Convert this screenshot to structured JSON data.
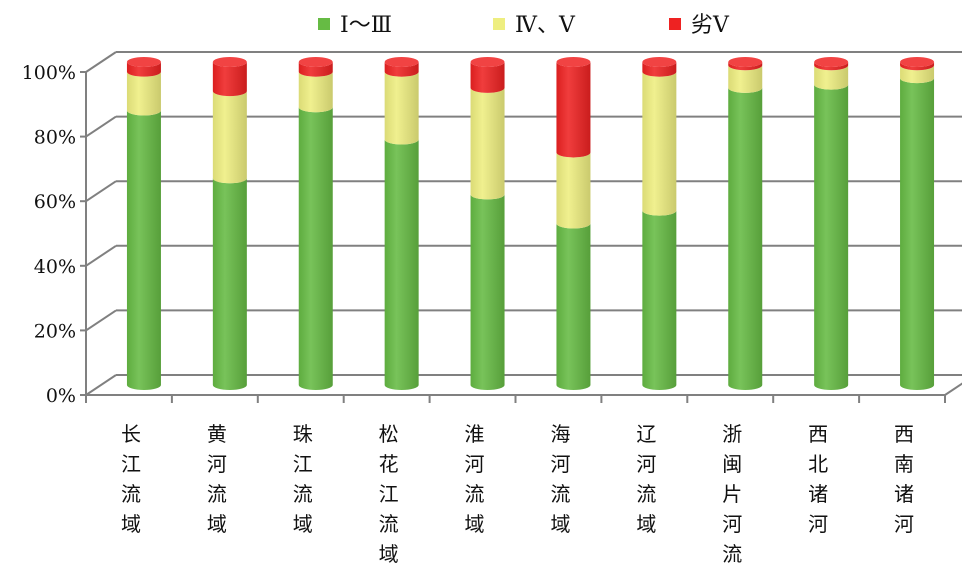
{
  "chart_data": {
    "type": "bar",
    "stacked": true,
    "orientation": "vertical",
    "three_d": true,
    "categories": [
      "长江流域",
      "黄河流域",
      "珠江流域",
      "松花江流域",
      "淮河流域",
      "海河流域",
      "辽河流域",
      "浙闽片河流",
      "西北诸河",
      "西南诸河"
    ],
    "series": [
      {
        "name": "Ⅰ～Ⅲ",
        "color": "#66bb44",
        "values": [
          85,
          64,
          86,
          76,
          59,
          50,
          54,
          92,
          93,
          95
        ]
      },
      {
        "name": "Ⅳ、Ⅴ",
        "color": "#eeee80",
        "values": [
          12,
          27,
          11,
          21,
          33,
          22,
          43,
          7,
          6,
          4
        ]
      },
      {
        "name": "劣Ⅴ",
        "color": "#ee2222",
        "values": [
          3,
          9,
          3,
          3,
          8,
          28,
          3,
          1,
          1,
          1
        ]
      }
    ],
    "y_ticks": [
      "0%",
      "20%",
      "40%",
      "60%",
      "80%",
      "100%"
    ],
    "ylim": [
      0,
      100
    ],
    "grid": true,
    "legend_position": "top-center",
    "title": "",
    "xlabel": "",
    "ylabel": ""
  }
}
